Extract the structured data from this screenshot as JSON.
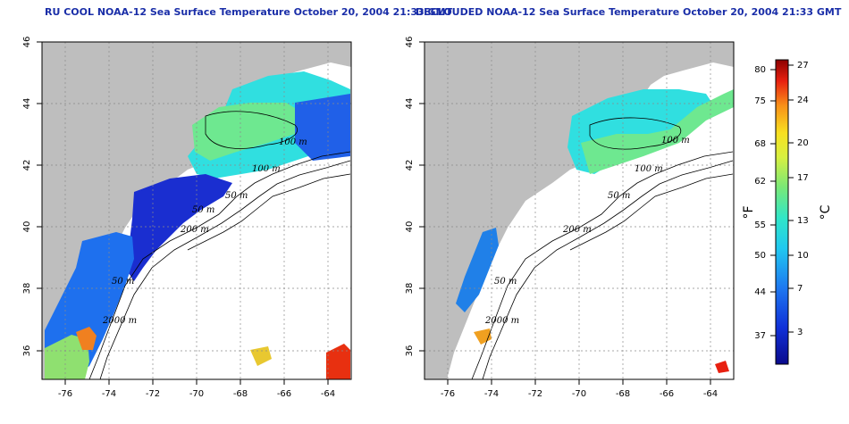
{
  "titles": {
    "left": "RU COOL NOAA-12 Sea Surface Temperature October 20, 2004 21:33 GMT",
    "right": "DECLOUDED NOAA-12 Sea Surface Temperature October 20, 2004 21:33 GMT"
  },
  "axes": {
    "x_ticks": [
      "-76",
      "-74",
      "-72",
      "-70",
      "-68",
      "-66",
      "-64"
    ],
    "y_ticks": [
      "36",
      "38",
      "40",
      "42",
      "44",
      "46"
    ]
  },
  "contour_labels": {
    "left": [
      "100 m",
      "100 m",
      "50 m",
      "50 m",
      "200 m",
      "50 m",
      "2000 m"
    ],
    "right": [
      "100 m",
      "100 m",
      "50 m",
      "200 m",
      "50 m",
      "2000 m"
    ]
  },
  "colorbar": {
    "unit_f": "°F",
    "unit_c": "°C",
    "f_ticks": [
      "80",
      "75",
      "68",
      "62",
      "55",
      "50",
      "44",
      "37"
    ],
    "c_ticks": [
      "27",
      "24",
      "20",
      "17",
      "13",
      "10",
      "7",
      "3"
    ]
  },
  "colors": {
    "title": "#1a2ea8",
    "land": "#bebebe",
    "ocean_nodata": "#ffffff",
    "contour": "#000000"
  }
}
